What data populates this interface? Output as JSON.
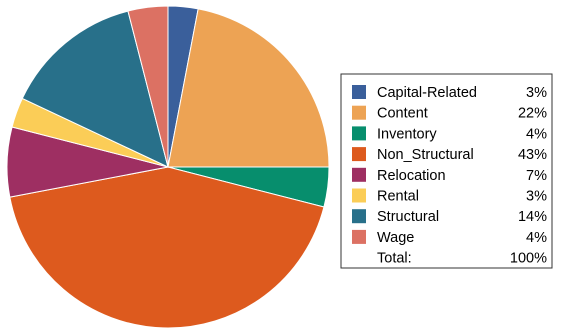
{
  "chart_data": {
    "type": "pie",
    "title": "",
    "categories": [
      "Capital-Related",
      "Content",
      "Inventory",
      "Non_Structural",
      "Relocation",
      "Rental",
      "Structural",
      "Wage"
    ],
    "values": [
      3,
      22,
      4,
      43,
      7,
      3,
      14,
      4
    ],
    "percent_labels": [
      "3%",
      "22%",
      "4%",
      "43%",
      "7%",
      "3%",
      "14%",
      "4%"
    ],
    "colors": [
      "#3a5f9b",
      "#eda354",
      "#078e6d",
      "#dd5a1e",
      "#9e2f62",
      "#fbcd57",
      "#28708a",
      "#dc7163"
    ],
    "total_label": "Total:",
    "total_value": "100%",
    "start_angle_deg": 0,
    "direction": "clockwise",
    "legend_position": "right"
  }
}
